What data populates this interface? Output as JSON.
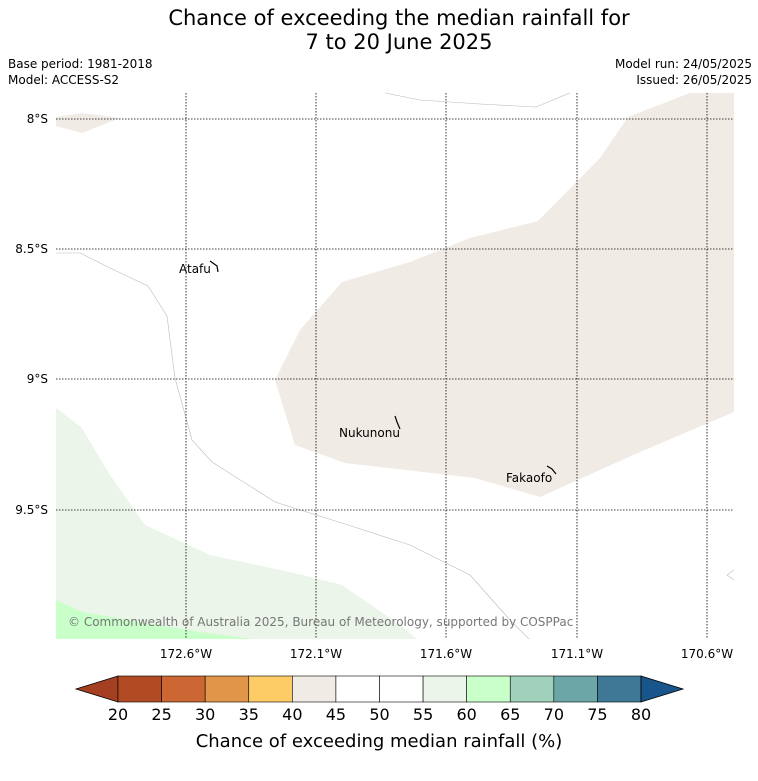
{
  "title": {
    "line1": "Chance of exceeding the median rainfall for",
    "line2": "7 to 20 June 2025"
  },
  "meta": {
    "base_period": "Base period: 1981-2018",
    "model": "Model: ACCESS-S2",
    "model_run": "Model run: 24/05/2025",
    "issued": "Issued: 26/05/2025"
  },
  "map": {
    "lat_ticks": [
      "8°S",
      "8.5°S",
      "9°S",
      "9.5°S"
    ],
    "lon_ticks": [
      "172.6°W",
      "172.1°W",
      "171.6°W",
      "171.1°W",
      "170.6°W"
    ],
    "places": [
      "Atafu",
      "Nukunonu",
      "Fakaofo"
    ],
    "copyright": "© Commonwealth of Australia 2025, Bureau of Meteorology, supported by COSPPac"
  },
  "colorbar": {
    "title": "Chance of exceeding median rainfall (%)",
    "labels": [
      "20",
      "25",
      "30",
      "35",
      "40",
      "45",
      "50",
      "55",
      "60",
      "65",
      "70",
      "75",
      "80"
    ],
    "colors": [
      "#b24a24",
      "#cc6633",
      "#e09548",
      "#fdcc66",
      "#f0ebe5",
      "#ffffff",
      "#ffffff",
      "#ebf5e9",
      "#c9ffc9",
      "#9fd1bb",
      "#6da6a6",
      "#3f7897"
    ],
    "under_color": "#a53f21",
    "over_color": "#17558a"
  }
}
